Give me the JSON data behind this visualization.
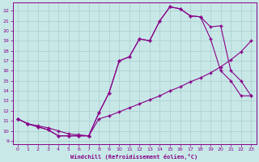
{
  "xlabel": "Windchill (Refroidissement éolien,°C)",
  "bg_color": "#c8e8e8",
  "line_color": "#880088",
  "grid_color": "#aacccc",
  "xlim": [
    -0.5,
    23.5
  ],
  "ylim": [
    8.7,
    22.8
  ],
  "yticks": [
    9,
    10,
    11,
    12,
    13,
    14,
    15,
    16,
    17,
    18,
    19,
    20,
    21,
    22
  ],
  "xticks": [
    0,
    1,
    2,
    3,
    4,
    5,
    6,
    7,
    8,
    9,
    10,
    11,
    12,
    13,
    14,
    15,
    16,
    17,
    18,
    19,
    20,
    21,
    22,
    23
  ],
  "line1_x": [
    0,
    1,
    2,
    3,
    4,
    5,
    6,
    7,
    8,
    9,
    10,
    11,
    12,
    13,
    14,
    15,
    16,
    17,
    18,
    19,
    20,
    21,
    22,
    23
  ],
  "line1_y": [
    11.2,
    10.7,
    10.5,
    10.3,
    10.0,
    9.7,
    9.6,
    9.5,
    11.2,
    11.5,
    11.9,
    12.3,
    12.7,
    13.1,
    13.5,
    14.0,
    14.4,
    14.9,
    15.3,
    15.8,
    16.4,
    17.1,
    17.9,
    19.0
  ],
  "line2_x": [
    0,
    1,
    2,
    3,
    4,
    5,
    6,
    7,
    8,
    9,
    10,
    11,
    12,
    13,
    14,
    15,
    16,
    17,
    18,
    19,
    20,
    21,
    22,
    23
  ],
  "line2_y": [
    11.2,
    10.7,
    10.4,
    10.1,
    9.5,
    9.5,
    9.5,
    9.5,
    11.8,
    13.8,
    17.0,
    17.4,
    19.2,
    19.0,
    21.0,
    22.4,
    22.2,
    21.5,
    21.4,
    20.4,
    20.5,
    16.0,
    15.0,
    13.5
  ],
  "line3_x": [
    0,
    1,
    2,
    3,
    4,
    5,
    6,
    7,
    8,
    9,
    10,
    11,
    12,
    13,
    14,
    15,
    16,
    17,
    18,
    19,
    20,
    21,
    22,
    23
  ],
  "line3_y": [
    11.2,
    10.7,
    10.4,
    10.1,
    9.5,
    9.5,
    9.5,
    9.5,
    11.8,
    13.8,
    17.0,
    17.4,
    19.2,
    19.0,
    21.0,
    22.4,
    22.2,
    21.5,
    21.4,
    19.2,
    16.0,
    15.0,
    13.5,
    13.5
  ]
}
